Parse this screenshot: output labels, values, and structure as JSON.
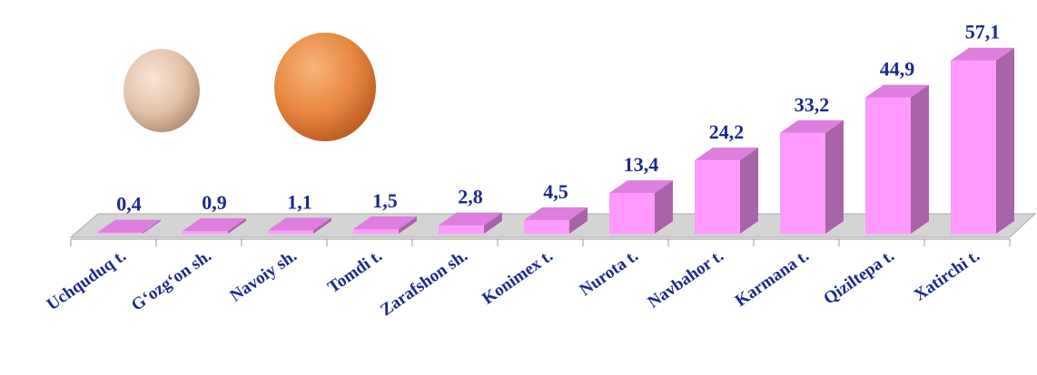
{
  "chart_data": {
    "type": "bar3d",
    "categories": [
      "Uchquduq t.",
      "G‘ozg‘on sh.",
      "Navoiy sh.",
      "Tomdi t.",
      "Zarafshon sh.",
      "Konimex t.",
      "Nurota t.",
      "Navbahor t.",
      "Karmana t.",
      "Qiziltepa t.",
      "Xatirchi t."
    ],
    "values": [
      0.4,
      0.9,
      1.1,
      1.5,
      2.8,
      4.5,
      13.4,
      24.2,
      33.2,
      44.9,
      57.1
    ],
    "value_labels": [
      "0,4",
      "0,9",
      "1,1",
      "1,5",
      "2,8",
      "4,5",
      "13,4",
      "24,2",
      "33,2",
      "44,9",
      "57,1"
    ],
    "color": "#ff99ff"
  }
}
